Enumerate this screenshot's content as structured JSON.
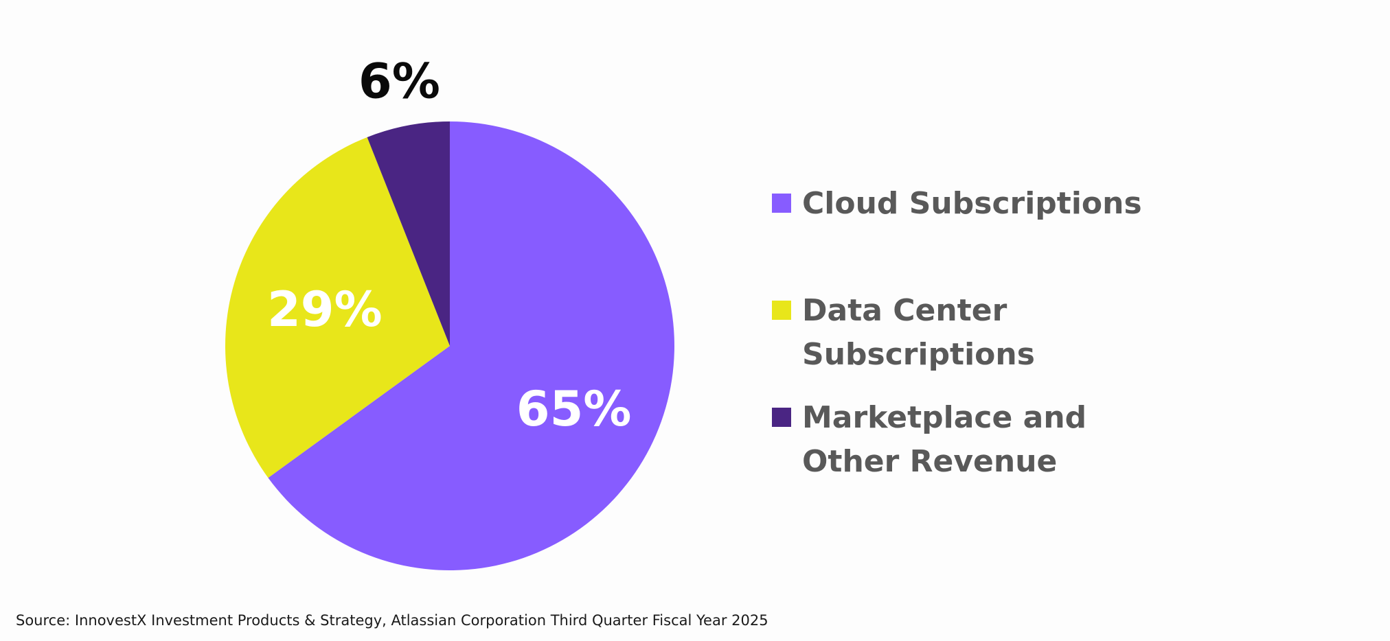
{
  "chart_data": {
    "type": "pie",
    "categories": [
      "Cloud Subscriptions",
      "Data Center Subscriptions",
      "Marketplace and Other Revenue"
    ],
    "values": [
      65,
      29,
      6
    ],
    "value_labels": [
      "65%",
      "29%",
      "6%"
    ],
    "colors": [
      "#875cff",
      "#e8e61a",
      "#4a2583"
    ],
    "label_colors": [
      "#ffffff",
      "#ffffff",
      "#0a0a0a"
    ],
    "legend_position": "right",
    "start_angle": "12 o'clock, clockwise"
  },
  "legend": {
    "items": [
      {
        "label": "Cloud Subscriptions",
        "color": "#875cff"
      },
      {
        "label": "Data Center Subscriptions",
        "color": "#e8e61a"
      },
      {
        "label": "Marketplace and Other Revenue",
        "color": "#4a2583"
      }
    ]
  },
  "source": "Source: InnovestX Investment Products & Strategy, Atlassian Corporation Third Quarter Fiscal Year 2025"
}
